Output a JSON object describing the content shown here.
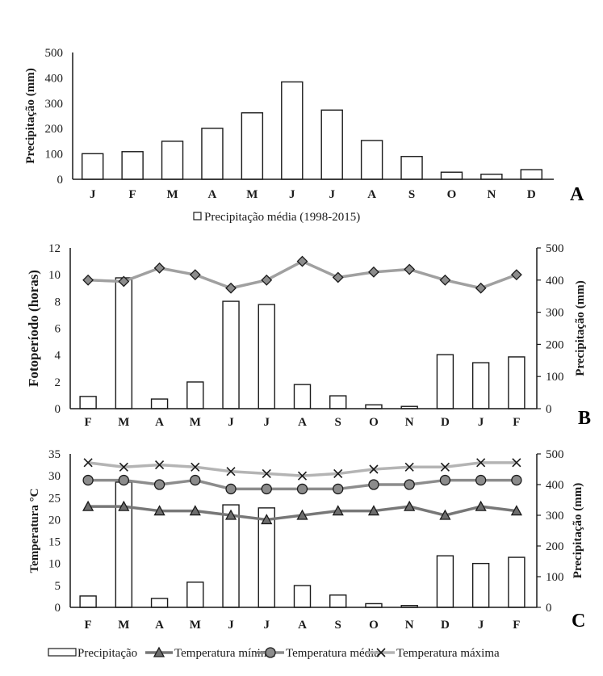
{
  "colors": {
    "axis": "#1a1a1a",
    "bar_fill": "#ffffff",
    "bar_stroke": "#1a1a1a",
    "marker_fill": "#8c8c8c",
    "line_photoperiod": "#a0a0a0",
    "line_min": "#777777",
    "line_mean": "#8c8c8c",
    "line_max": "#b4b4b4"
  },
  "chart_data": [
    {
      "panel": "A",
      "type": "bar",
      "title": "",
      "categories": [
        "J",
        "F",
        "M",
        "A",
        "M",
        "J",
        "J",
        "A",
        "S",
        "O",
        "N",
        "D"
      ],
      "ylabel": "Precipitação (mm)",
      "ylim": [
        0,
        500
      ],
      "yticks": [
        "0",
        "100",
        "200",
        "300",
        "400",
        "500"
      ],
      "series": [
        {
          "name": "Precipitação média (1998-2015)",
          "type": "bar",
          "values": [
            101,
            109,
            150,
            201,
            262,
            384,
            273,
            153,
            90,
            28,
            20,
            38
          ]
        }
      ],
      "legend": {
        "label": "Precipitação média (1998-2015)",
        "placement": "bottom"
      },
      "grid": false
    },
    {
      "panel": "B",
      "type": "bar+line",
      "categories": [
        "F",
        "M",
        "A",
        "M",
        "J",
        "J",
        "A",
        "S",
        "O",
        "N",
        "D",
        "J",
        "F"
      ],
      "ylabel": "Fotoperíodo (horas)",
      "ylim": [
        0,
        12
      ],
      "yticks": [
        "0",
        "2",
        "4",
        "6",
        "8",
        "10",
        "12"
      ],
      "y2label": "Precipitação (mm)",
      "y2lim": [
        0,
        500
      ],
      "y2ticks": [
        "0",
        "100",
        "200",
        "300",
        "400",
        "500"
      ],
      "series": [
        {
          "name": "Precipitação",
          "type": "bar",
          "axis": "right",
          "values": [
            38,
            407,
            30,
            83,
            334,
            324,
            75,
            40,
            12,
            7,
            168,
            143,
            161
          ]
        },
        {
          "name": "Fotoperíodo",
          "type": "line",
          "axis": "left",
          "marker": "diamond",
          "values": [
            9.6,
            9.5,
            10.5,
            10.0,
            9.0,
            9.6,
            11.0,
            9.8,
            10.2,
            10.4,
            9.6,
            9.0,
            10.0
          ]
        }
      ],
      "grid": false
    },
    {
      "panel": "C",
      "type": "bar+line",
      "categories": [
        "F",
        "M",
        "A",
        "M",
        "J",
        "J",
        "A",
        "S",
        "O",
        "N",
        "D",
        "J",
        "F"
      ],
      "ylabel": "Temperatura °C",
      "ylim": [
        0,
        35
      ],
      "yticks": [
        "0",
        "5",
        "10",
        "15",
        "20",
        "25",
        "30",
        "35"
      ],
      "y2label": "Precipitação (mm)",
      "y2lim": [
        0,
        500
      ],
      "y2ticks": [
        "0",
        "100",
        "200",
        "300",
        "400",
        "500"
      ],
      "series": [
        {
          "name": "Precipitação",
          "type": "bar",
          "axis": "right",
          "values": [
            37,
            408,
            29,
            82,
            334,
            324,
            71,
            40,
            12,
            6,
            168,
            143,
            163
          ]
        },
        {
          "name": "Temperatura mínima",
          "type": "line",
          "axis": "left",
          "marker": "triangle",
          "values": [
            23,
            23,
            22,
            22,
            21,
            20,
            21,
            22,
            22,
            23,
            21,
            23,
            22
          ]
        },
        {
          "name": "Temperatura média",
          "type": "line",
          "axis": "left",
          "marker": "circle",
          "values": [
            29,
            29,
            28,
            29,
            27,
            27,
            27,
            27,
            28,
            28,
            29,
            29,
            29
          ]
        },
        {
          "name": "Temperatura máxima",
          "type": "line",
          "axis": "left",
          "marker": "x",
          "values": [
            33,
            32,
            32.5,
            32,
            31,
            30.5,
            30,
            30.5,
            31.5,
            32,
            32,
            33,
            33
          ]
        }
      ],
      "legend": {
        "placement": "bottom",
        "items": [
          "Precipitação",
          "Temperatura mínima",
          "Temperatura média",
          "Temperatura máxima"
        ]
      },
      "grid": false
    }
  ]
}
